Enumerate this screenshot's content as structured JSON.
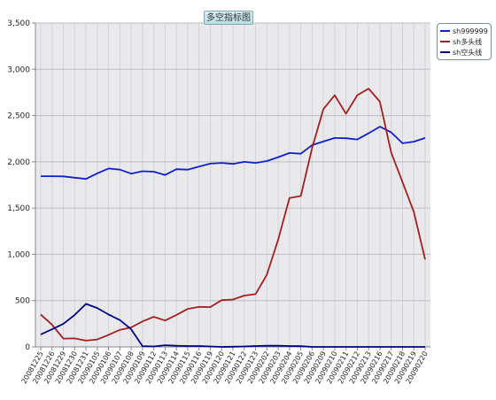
{
  "chart_data": {
    "type": "line",
    "title": "多空指标图",
    "ylim": [
      0,
      3500
    ],
    "yticks": [
      "0",
      "500",
      "1,000",
      "1,500",
      "2,000",
      "2,500",
      "3,000",
      "3,500"
    ],
    "ytick_values": [
      0,
      500,
      1000,
      1500,
      2000,
      2500,
      3000,
      3500
    ],
    "grid": true,
    "legend_position": "top-right",
    "categories": [
      "20081225",
      "20081226",
      "20081229",
      "20081230",
      "20081231",
      "20090105",
      "20090106",
      "20090107",
      "20090108",
      "20090109",
      "20090112",
      "20090113",
      "20090114",
      "20090115",
      "20090116",
      "20090119",
      "20090120",
      "20090121",
      "20090122",
      "20090123",
      "20090202",
      "20090203",
      "20090204",
      "20090205",
      "20090206",
      "20090209",
      "20090210",
      "20090211",
      "20090212",
      "20090213",
      "20090216",
      "20090217",
      "20090218",
      "20090219",
      "20090220"
    ],
    "series": [
      {
        "name": "sh999999",
        "color": "#1020c8",
        "values": [
          1845,
          1845,
          1843,
          1828,
          1815,
          1875,
          1928,
          1915,
          1872,
          1898,
          1893,
          1858,
          1920,
          1915,
          1948,
          1980,
          1988,
          1978,
          2000,
          1988,
          2008,
          2050,
          2095,
          2088,
          2180,
          2220,
          2258,
          2255,
          2242,
          2308,
          2380,
          2318,
          2200,
          2218,
          2258
        ]
      },
      {
        "name": "sh多头线",
        "color": "#a02020",
        "values": [
          350,
          240,
          90,
          92,
          68,
          80,
          130,
          185,
          210,
          275,
          325,
          285,
          345,
          410,
          432,
          430,
          505,
          512,
          555,
          570,
          780,
          1160,
          1608,
          1630,
          2150,
          2570,
          2720,
          2520,
          2720,
          2790,
          2650,
          2100,
          1780,
          1460,
          945
        ]
      },
      {
        "name": "sh空头线",
        "color": "#000080",
        "values": [
          135,
          190,
          250,
          345,
          465,
          420,
          350,
          290,
          190,
          8,
          5,
          18,
          12,
          10,
          10,
          5,
          0,
          2,
          5,
          10,
          12,
          12,
          10,
          8,
          0,
          0,
          0,
          0,
          0,
          0,
          0,
          0,
          0,
          0,
          0
        ]
      }
    ]
  }
}
